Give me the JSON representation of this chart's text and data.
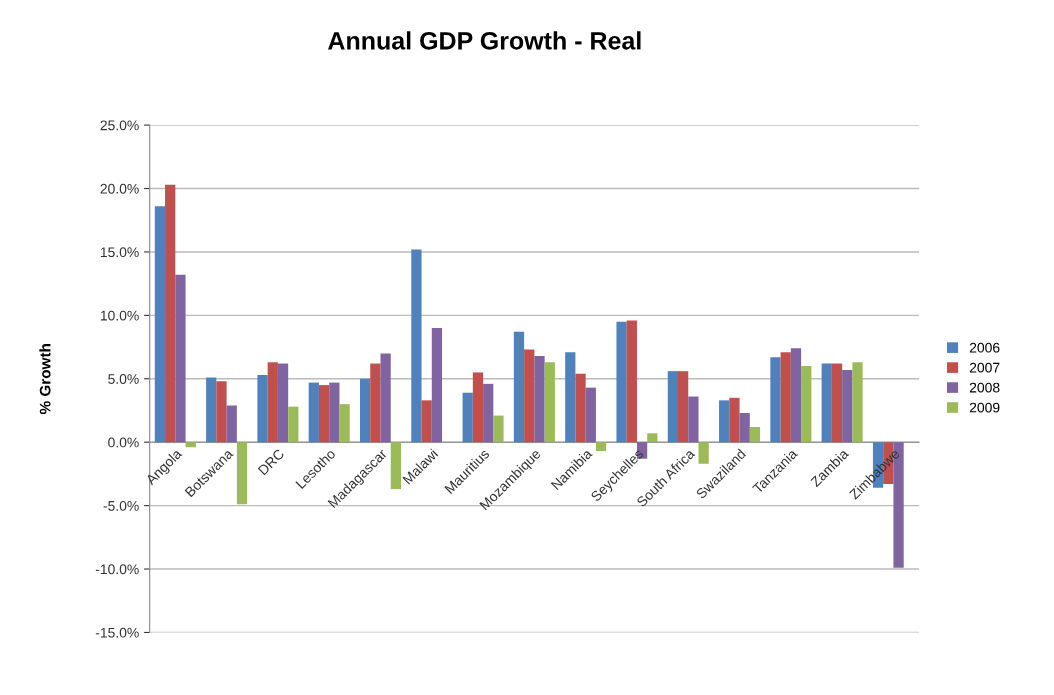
{
  "chart_data": {
    "type": "bar",
    "title": "Annual GDP Growth - Real",
    "ylabel": "% Growth",
    "categories": [
      "Angola",
      "Botswana",
      "DRC",
      "Lesotho",
      "Madagascar",
      "Malawi",
      "Mauritius",
      "Mozambique",
      "Namibia",
      "Seychelles",
      "South Africa",
      "Swaziland",
      "Tanzania",
      "Zambia",
      "Zimbabwe"
    ],
    "series": [
      {
        "name": "2006",
        "color": "#4f81bd",
        "values": [
          18.6,
          5.1,
          5.3,
          4.7,
          5.0,
          15.2,
          3.9,
          8.7,
          7.1,
          9.5,
          5.6,
          3.3,
          6.7,
          6.2,
          -3.6
        ]
      },
      {
        "name": "2007",
        "color": "#c0504d",
        "values": [
          20.3,
          4.8,
          6.3,
          4.5,
          6.2,
          3.3,
          5.5,
          7.3,
          5.4,
          9.6,
          5.6,
          3.5,
          7.1,
          6.2,
          -3.3
        ]
      },
      {
        "name": "2008",
        "color": "#8064a2",
        "values": [
          13.2,
          2.9,
          6.2,
          4.7,
          7.0,
          9.0,
          4.6,
          6.8,
          4.3,
          -1.3,
          3.6,
          2.3,
          7.4,
          5.7,
          -9.9
        ]
      },
      {
        "name": "2009",
        "color": "#9bbb59",
        "values": [
          -0.4,
          -4.9,
          2.8,
          3.0,
          -3.7,
          null,
          2.1,
          6.3,
          -0.7,
          0.7,
          -1.7,
          1.2,
          6.0,
          6.3,
          null
        ]
      }
    ],
    "ylim": [
      -15,
      25
    ],
    "yticks": [
      {
        "value": -15,
        "label": "-15.0%"
      },
      {
        "value": -10,
        "label": "-10.0%"
      },
      {
        "value": -5,
        "label": "-5.0%"
      },
      {
        "value": 0,
        "label": "0.0%"
      },
      {
        "value": 5,
        "label": "5.0%"
      },
      {
        "value": 10,
        "label": "10.0%"
      },
      {
        "value": 15,
        "label": "15.0%"
      },
      {
        "value": 20,
        "label": "20.0%"
      },
      {
        "value": 25,
        "label": "25.0%"
      }
    ],
    "grid": "y",
    "legend": "right"
  }
}
